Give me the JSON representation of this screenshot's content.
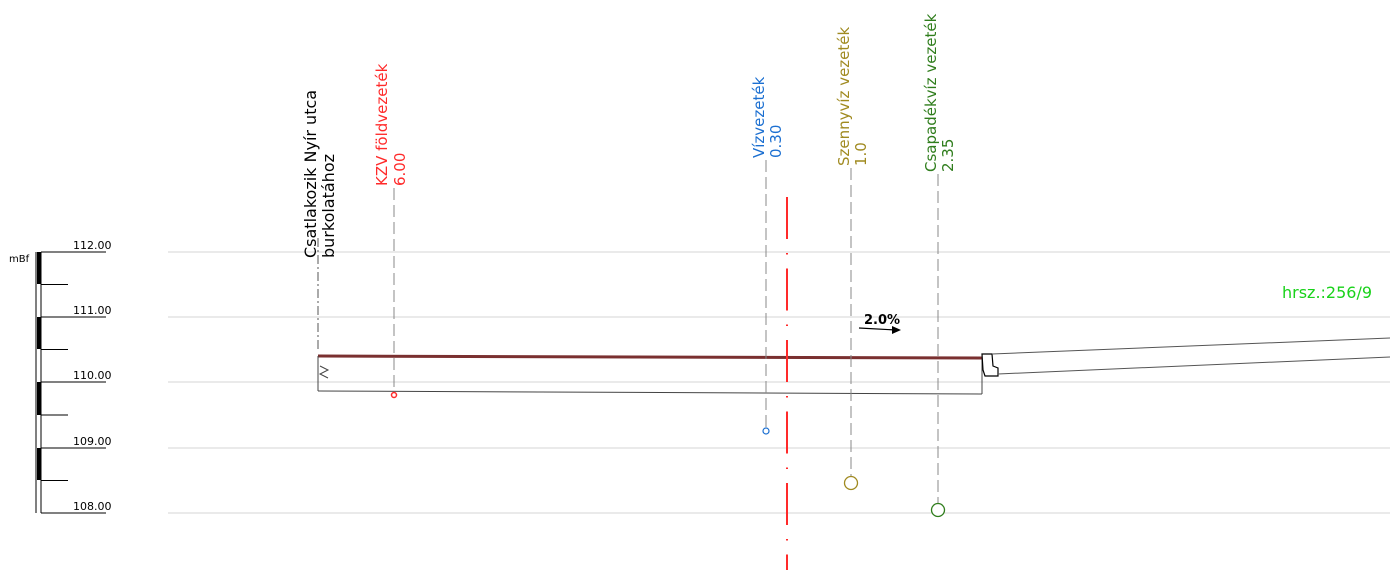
{
  "colors": {
    "black": "#000000",
    "gray": "#7a7a7a",
    "gridline": "#d6d6d6",
    "red": "#ff2a2a",
    "blue": "#1b6fd1",
    "olive": "#a08a20",
    "green": "#2f7d1c",
    "bright_green": "#19d21a",
    "road_surface": "#7a3030"
  },
  "scale": {
    "unit": "mBf",
    "levels": [
      "112.00",
      "111.00",
      "110.00",
      "109.00",
      "108.00"
    ]
  },
  "annotations": {
    "connection": {
      "line1": "Csatlakozik Nyír utca",
      "line2": "burkolatához"
    },
    "kzv": {
      "name": "KZV földvezeték",
      "value": "6.00"
    },
    "water": {
      "name": "Vízvezeték",
      "value": "0.30"
    },
    "sewer": {
      "name": "Szennyvíz  vezeték",
      "value": "1.0"
    },
    "storm": {
      "name": "Csapadékvíz  vezeték",
      "value": "2.35"
    }
  },
  "slope": "2.0%",
  "parcel": "hrsz.:256/9"
}
